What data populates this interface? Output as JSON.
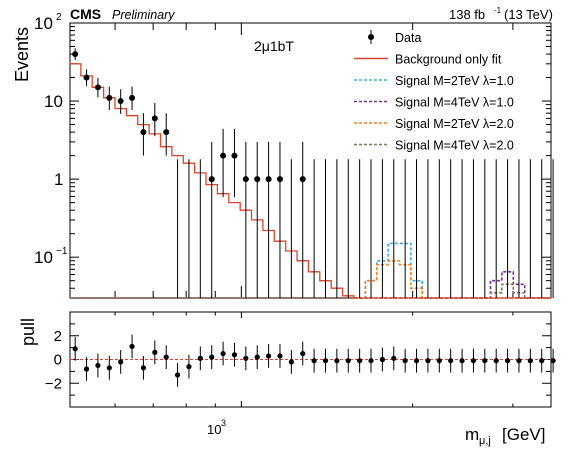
{
  "header": {
    "experiment": "CMS",
    "status": "Preliminary",
    "lumi_value": "138 fb",
    "lumi_exp": "-1",
    "lumi_energy": "(13 TeV)"
  },
  "category_label": "2μ1bT",
  "colors": {
    "data": "#000000",
    "background": "#d9462b",
    "sig_2_1": "#3ba7e0",
    "sig_4_1": "#7b2a9a",
    "sig_2_2": "#f07f1c",
    "sig_4_2": "#8b6f5f"
  },
  "chart_data": [
    {
      "type": "line",
      "panel": "main",
      "ylabel": "Events",
      "yscale": "log",
      "ylim": [
        0.03,
        100
      ],
      "xscale": "log",
      "xlim": [
        500,
        3500
      ],
      "y_ticks": [
        {
          "base": "10",
          "exp": "2",
          "value": 100
        },
        {
          "base": "10",
          "exp": "",
          "value": 10
        },
        {
          "base": "1",
          "exp": "",
          "value": 1
        },
        {
          "base": "10",
          "exp": "−1",
          "value": 0.1
        }
      ],
      "legend_position": "top-right",
      "legend": [
        {
          "key": "data",
          "label": "Data",
          "style": "marker"
        },
        {
          "key": "background",
          "label": "Background only fit",
          "style": "solid"
        },
        {
          "key": "sig_2_1",
          "label": "Signal M=2TeV λ=1.0",
          "style": "dashed"
        },
        {
          "key": "sig_4_1",
          "label": "Signal M=4TeV λ=1.0",
          "style": "dashed"
        },
        {
          "key": "sig_2_2",
          "label": "Signal M=2TeV λ=2.0",
          "style": "dashed"
        },
        {
          "key": "sig_4_2",
          "label": "Signal M=4TeV λ=2.0",
          "style": "dashed"
        }
      ],
      "bin_width_log10": 0.02,
      "data_x": [
        510.6,
        534.6,
        559.8,
        586.2,
        613.8,
        642.7,
        672.9,
        704.7,
        737.9,
        772.6,
        809.0,
        847.1,
        887.1,
        928.9,
        972.6,
        1018.4,
        1066.4,
        1116.6,
        1169.2,
        1224.3,
        1282.0,
        1342.3,
        1405.6,
        1471.8,
        1541.2,
        1613.8,
        1689.8,
        1769.5,
        1852.8,
        1940.1,
        2031.5,
        2127.3,
        2227.5,
        2332.4,
        2442.3,
        2557.4,
        2677.9,
        2804.0,
        2936.1,
        3074.5,
        3219.4,
        3371.1,
        3529.9
      ],
      "data_y": [
        40,
        20,
        15,
        11,
        10,
        11,
        4,
        6,
        4,
        null,
        null,
        null,
        1,
        2,
        2,
        1,
        1,
        1,
        1,
        null,
        1,
        null,
        null,
        null,
        null,
        null,
        null,
        null,
        null,
        null,
        null,
        null,
        null,
        null,
        null,
        null,
        null,
        null,
        null,
        null,
        null,
        null,
        null
      ],
      "series": [
        {
          "key": "background",
          "name": "Background only fit",
          "values": [
            30,
            21,
            15,
            11,
            8,
            6.5,
            5,
            3.8,
            2.6,
            2.0,
            1.6,
            1.2,
            0.85,
            0.65,
            0.5,
            0.4,
            0.3,
            0.22,
            0.16,
            0.12,
            0.09,
            0.065,
            0.05,
            0.04,
            0.032,
            0.028,
            0.025,
            0.023,
            0.022,
            0.021,
            0.021,
            0.021,
            0.021,
            0.021,
            0.021,
            0.021,
            0.021,
            0.021,
            0.021,
            0.021,
            0.021,
            0.021,
            0.021
          ]
        },
        {
          "key": "sig_2_1",
          "name": "Signal M=2TeV λ=1.0",
          "values": [
            0.021,
            0.021,
            0.021,
            0.021,
            0.021,
            0.021,
            0.021,
            0.021,
            0.021,
            0.021,
            0.021,
            0.021,
            0.021,
            0.021,
            0.021,
            0.021,
            0.021,
            0.021,
            0.021,
            0.021,
            0.021,
            0.021,
            0.021,
            0.021,
            0.021,
            0.021,
            0.05,
            0.09,
            0.15,
            0.15,
            0.05,
            0.021,
            0.021,
            0.021,
            0.021,
            0.021,
            0.021,
            0.021,
            0.021,
            0.021,
            0.021,
            0.021,
            0.021
          ]
        },
        {
          "key": "sig_2_2",
          "name": "Signal M=2TeV λ=2.0",
          "values": [
            0.021,
            0.021,
            0.021,
            0.021,
            0.021,
            0.021,
            0.021,
            0.021,
            0.021,
            0.021,
            0.021,
            0.021,
            0.021,
            0.021,
            0.021,
            0.021,
            0.021,
            0.021,
            0.021,
            0.021,
            0.021,
            0.021,
            0.021,
            0.021,
            0.021,
            0.03,
            0.05,
            0.08,
            0.09,
            0.08,
            0.04,
            0.021,
            0.021,
            0.021,
            0.021,
            0.021,
            0.021,
            0.021,
            0.021,
            0.021,
            0.021,
            0.021,
            0.021
          ]
        },
        {
          "key": "sig_4_1",
          "name": "Signal M=4TeV λ=1.0",
          "values": [
            0.021,
            0.021,
            0.021,
            0.021,
            0.021,
            0.021,
            0.021,
            0.021,
            0.021,
            0.021,
            0.021,
            0.021,
            0.021,
            0.021,
            0.021,
            0.021,
            0.021,
            0.021,
            0.021,
            0.021,
            0.021,
            0.021,
            0.021,
            0.021,
            0.021,
            0.021,
            0.021,
            0.021,
            0.021,
            0.021,
            0.021,
            0.021,
            0.021,
            0.021,
            0.021,
            0.021,
            0.021,
            0.05,
            0.065,
            0.045,
            0.021,
            0.021,
            0.021
          ]
        },
        {
          "key": "sig_4_2",
          "name": "Signal M=4TeV λ=2.0",
          "values": [
            0.021,
            0.021,
            0.021,
            0.021,
            0.021,
            0.021,
            0.021,
            0.021,
            0.021,
            0.021,
            0.021,
            0.021,
            0.021,
            0.021,
            0.021,
            0.021,
            0.021,
            0.021,
            0.021,
            0.021,
            0.021,
            0.021,
            0.021,
            0.021,
            0.021,
            0.021,
            0.021,
            0.021,
            0.021,
            0.021,
            0.021,
            0.021,
            0.021,
            0.021,
            0.021,
            0.021,
            0.021,
            0.035,
            0.045,
            0.035,
            0.021,
            0.021,
            0.021
          ]
        }
      ]
    },
    {
      "type": "scatter",
      "panel": "pull",
      "ylabel": "pull",
      "xlabel_base": "m",
      "xlabel_sub": "μ,j",
      "xlabel_unit": "[GeV]",
      "ylim": [
        -4,
        4
      ],
      "y_ticks": [
        "2",
        "0",
        "−2"
      ],
      "x_tick_label": {
        "base": "10",
        "exp": "3",
        "value": 1000
      },
      "pull_values": [
        0.9,
        -0.8,
        -0.5,
        -0.7,
        -0.2,
        1.1,
        -0.7,
        0.6,
        0.2,
        -1.3,
        -0.6,
        0.1,
        0.2,
        0.5,
        0.4,
        0.1,
        0.2,
        0.3,
        0.3,
        -0.2,
        0.5,
        -0.1,
        -0.1,
        -0.1,
        -0.1,
        -0.1,
        -0.1,
        0.0,
        0.1,
        -0.1,
        -0.1,
        -0.1,
        -0.1,
        -0.1,
        -0.1,
        -0.1,
        -0.1,
        -0.1,
        -0.1,
        -0.1,
        -0.1,
        -0.1,
        -0.1
      ],
      "pull_errors": [
        1,
        1,
        1,
        1,
        1,
        1,
        1,
        1,
        1,
        1,
        1,
        1,
        1,
        1,
        1,
        1,
        1,
        1,
        1,
        1,
        1,
        1,
        1,
        1,
        1,
        1,
        1,
        1,
        1,
        1,
        1,
        1,
        1,
        1,
        1,
        1,
        1,
        1,
        1,
        1,
        1,
        1,
        1
      ]
    }
  ]
}
